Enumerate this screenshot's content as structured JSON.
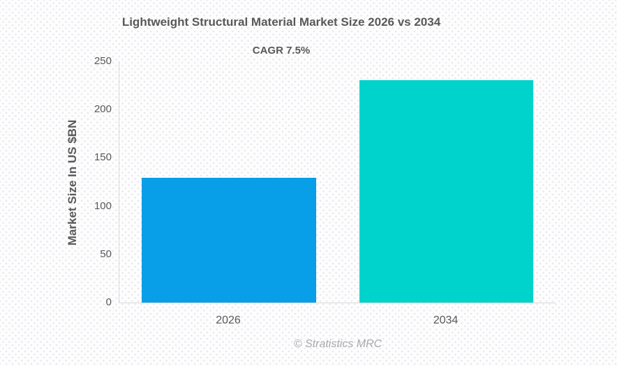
{
  "chart_data": {
    "type": "bar",
    "title": "Lightweight Structural Material Market Size 2026 vs 2034",
    "subtitle": "CAGR 7.5%",
    "categories": [
      "2026",
      "2034"
    ],
    "values": [
      129.3,
      230.6
    ],
    "xlabel": "",
    "ylabel": "Market Size In US $BN",
    "ylim": [
      0,
      250
    ],
    "yticks": [
      0,
      50,
      100,
      150,
      200,
      250
    ],
    "bar_colors": [
      "#089ee8",
      "#00d2cc"
    ],
    "axis_line_color": "#d9d9d9",
    "text_color": "#595959",
    "grid": false,
    "legend": false,
    "footer": "© Stratistics MRC"
  }
}
